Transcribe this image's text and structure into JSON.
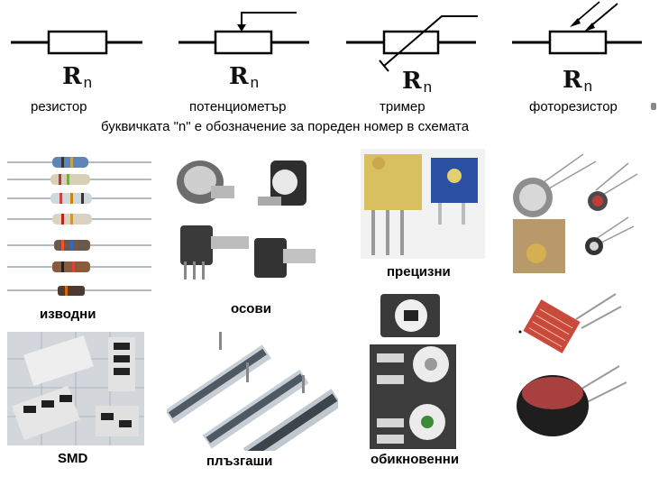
{
  "symbols": [
    {
      "id": "resistor",
      "designator": "R",
      "subscript": "n",
      "name": "резистор"
    },
    {
      "id": "potentiometer",
      "designator": "R",
      "subscript": "n",
      "name": "потенциометър"
    },
    {
      "id": "trimmer",
      "designator": "R",
      "subscript": "n",
      "name": "тример"
    },
    {
      "id": "photoresistor",
      "designator": "R",
      "subscript": "n",
      "name": "фоторезистор"
    }
  ],
  "footnote": "буквичката \"n\" е  обозначение за пореден номер в схемата",
  "photos": {
    "leaded": "изводни",
    "axial": "осови",
    "precision": "прецизни",
    "smd": "SMD",
    "slider": "плъзгаши",
    "ordinary": "обикновенни"
  },
  "colors": {
    "line": "#000000",
    "resistor_body": "#b9c9d6",
    "pcb": "#d3d7dc"
  }
}
